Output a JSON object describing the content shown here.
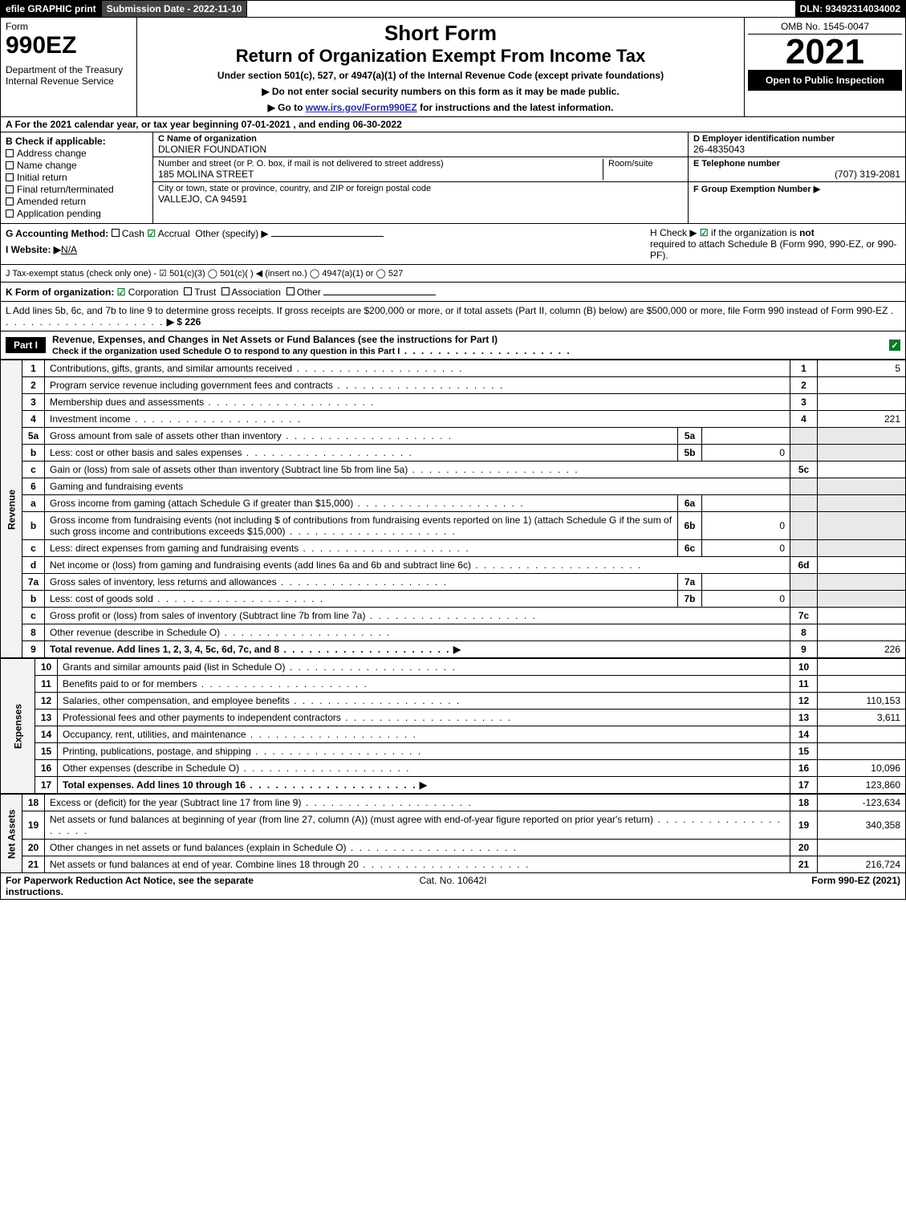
{
  "topbar": {
    "efile": "efile GRAPHIC print",
    "subdate": "Submission Date - 2022-11-10",
    "dln": "DLN: 93492314034002"
  },
  "header": {
    "form_word": "Form",
    "form_num": "990EZ",
    "dept": "Department of the Treasury\nInternal Revenue Service",
    "short": "Short Form",
    "rtitle": "Return of Organization Exempt From Income Tax",
    "under": "Under section 501(c), 527, or 4947(a)(1) of the Internal Revenue Code (except private foundations)",
    "ssn": "▶ Do not enter social security numbers on this form as it may be made public.",
    "goto_pre": "▶ Go to ",
    "goto_link": "www.irs.gov/Form990EZ",
    "goto_post": " for instructions and the latest information.",
    "omb": "OMB No. 1545-0047",
    "year": "2021",
    "open": "Open to Public Inspection"
  },
  "a_line": "A  For the 2021 calendar year, or tax year beginning 07-01-2021 , and ending 06-30-2022",
  "colB": {
    "title": "B  Check if applicable:",
    "items": [
      "Address change",
      "Name change",
      "Initial return",
      "Final return/terminated",
      "Amended return",
      "Application pending"
    ]
  },
  "colC": {
    "c_label": "C Name of organization",
    "c_name": "DLONIER FOUNDATION",
    "addr_label": "Number and street (or P. O. box, if mail is not delivered to street address)",
    "room_label": "Room/suite",
    "addr": "185 MOLINA STREET",
    "city_label": "City or town, state or province, country, and ZIP or foreign postal code",
    "city": "VALLEJO, CA  94591"
  },
  "colD": {
    "d_label": "D Employer identification number",
    "ein": "26-4835043",
    "e_label": "E Telephone number",
    "phone": "(707) 319-2081",
    "f_label": "F Group Exemption Number  ▶"
  },
  "g_line": {
    "label": "G Accounting Method:",
    "cash": "Cash",
    "accrual": "Accrual",
    "other": "Other (specify) ▶"
  },
  "h_line": {
    "pre": "H  Check ▶ ",
    "post": " if the organization is ",
    "not": "not",
    "rest": "required to attach Schedule B (Form 990, 990-EZ, or 990-PF)."
  },
  "i_line": {
    "label": "I Website: ▶",
    "val": "N/A"
  },
  "j_line": "J Tax-exempt status (check only one) - ☑ 501(c)(3)  ◯ 501(c)(  ) ◀ (insert no.)  ◯ 4947(a)(1) or  ◯ 527",
  "k_line": {
    "label": "K Form of organization:",
    "corp": "Corporation",
    "trust": "Trust",
    "assoc": "Association",
    "other": "Other"
  },
  "l_line": {
    "text": "L Add lines 5b, 6c, and 7b to line 9 to determine gross receipts. If gross receipts are $200,000 or more, or if total assets (Part II, column (B) below) are $500,000 or more, file Form 990 instead of Form 990-EZ",
    "arrow": "▶ $ 226"
  },
  "part1": {
    "label": "Part I",
    "title": "Revenue, Expenses, and Changes in Net Assets or Fund Balances (see the instructions for Part I)",
    "sub": "Check if the organization used Schedule O to respond to any question in this Part I"
  },
  "revenue": [
    {
      "ln": "1",
      "desc": "Contributions, gifts, grants, and similar amounts received",
      "num": "1",
      "amt": "5"
    },
    {
      "ln": "2",
      "desc": "Program service revenue including government fees and contracts",
      "num": "2",
      "amt": ""
    },
    {
      "ln": "3",
      "desc": "Membership dues and assessments",
      "num": "3",
      "amt": ""
    },
    {
      "ln": "4",
      "desc": "Investment income",
      "num": "4",
      "amt": "221"
    },
    {
      "ln": "5a",
      "desc": "Gross amount from sale of assets other than inventory",
      "sub": "5a",
      "subamt": ""
    },
    {
      "ln": "b",
      "desc": "Less: cost or other basis and sales expenses",
      "sub": "5b",
      "subamt": "0"
    },
    {
      "ln": "c",
      "desc": "Gain or (loss) from sale of assets other than inventory (Subtract line 5b from line 5a)",
      "num": "5c",
      "amt": ""
    },
    {
      "ln": "6",
      "desc": "Gaming and fundraising events"
    },
    {
      "ln": "a",
      "desc": "Gross income from gaming (attach Schedule G if greater than $15,000)",
      "sub": "6a",
      "subamt": ""
    },
    {
      "ln": "b",
      "desc": "Gross income from fundraising events (not including $                of contributions from fundraising events reported on line 1) (attach Schedule G if the sum of such gross income and contributions exceeds $15,000)",
      "sub": "6b",
      "subamt": "0"
    },
    {
      "ln": "c",
      "desc": "Less: direct expenses from gaming and fundraising events",
      "sub": "6c",
      "subamt": "0"
    },
    {
      "ln": "d",
      "desc": "Net income or (loss) from gaming and fundraising events (add lines 6a and 6b and subtract line 6c)",
      "num": "6d",
      "amt": ""
    },
    {
      "ln": "7a",
      "desc": "Gross sales of inventory, less returns and allowances",
      "sub": "7a",
      "subamt": ""
    },
    {
      "ln": "b",
      "desc": "Less: cost of goods sold",
      "sub": "7b",
      "subamt": "0"
    },
    {
      "ln": "c",
      "desc": "Gross profit or (loss) from sales of inventory (Subtract line 7b from line 7a)",
      "num": "7c",
      "amt": ""
    },
    {
      "ln": "8",
      "desc": "Other revenue (describe in Schedule O)",
      "num": "8",
      "amt": ""
    },
    {
      "ln": "9",
      "desc": "Total revenue. Add lines 1, 2, 3, 4, 5c, 6d, 7c, and 8",
      "num": "9",
      "amt": "226",
      "bold": true,
      "arrow": true
    }
  ],
  "expense_rows": [
    {
      "ln": "10",
      "desc": "Grants and similar amounts paid (list in Schedule O)",
      "num": "10",
      "amt": ""
    },
    {
      "ln": "11",
      "desc": "Benefits paid to or for members",
      "num": "11",
      "amt": ""
    },
    {
      "ln": "12",
      "desc": "Salaries, other compensation, and employee benefits",
      "num": "12",
      "amt": "110,153"
    },
    {
      "ln": "13",
      "desc": "Professional fees and other payments to independent contractors",
      "num": "13",
      "amt": "3,611"
    },
    {
      "ln": "14",
      "desc": "Occupancy, rent, utilities, and maintenance",
      "num": "14",
      "amt": ""
    },
    {
      "ln": "15",
      "desc": "Printing, publications, postage, and shipping",
      "num": "15",
      "amt": ""
    },
    {
      "ln": "16",
      "desc": "Other expenses (describe in Schedule O)",
      "num": "16",
      "amt": "10,096"
    },
    {
      "ln": "17",
      "desc": "Total expenses. Add lines 10 through 16",
      "num": "17",
      "amt": "123,860",
      "bold": true,
      "arrow": true
    }
  ],
  "netassets_rows": [
    {
      "ln": "18",
      "desc": "Excess or (deficit) for the year (Subtract line 17 from line 9)",
      "num": "18",
      "amt": "-123,634"
    },
    {
      "ln": "19",
      "desc": "Net assets or fund balances at beginning of year (from line 27, column (A)) (must agree with end-of-year figure reported on prior year's return)",
      "num": "19",
      "amt": "340,358"
    },
    {
      "ln": "20",
      "desc": "Other changes in net assets or fund balances (explain in Schedule O)",
      "num": "20",
      "amt": ""
    },
    {
      "ln": "21",
      "desc": "Net assets or fund balances at end of year. Combine lines 18 through 20",
      "num": "21",
      "amt": "216,724"
    }
  ],
  "vlabels": {
    "rev": "Revenue",
    "exp": "Expenses",
    "net": "Net Assets"
  },
  "footer": {
    "left": "For Paperwork Reduction Act Notice, see the separate instructions.",
    "mid": "Cat. No. 10642I",
    "right_pre": "Form ",
    "right_form": "990-EZ",
    "right_year": " (2021)"
  },
  "colors": {
    "black": "#000000",
    "green": "#0a7a2a",
    "link": "#2a2aa0",
    "shade": "#e9e9e9"
  }
}
